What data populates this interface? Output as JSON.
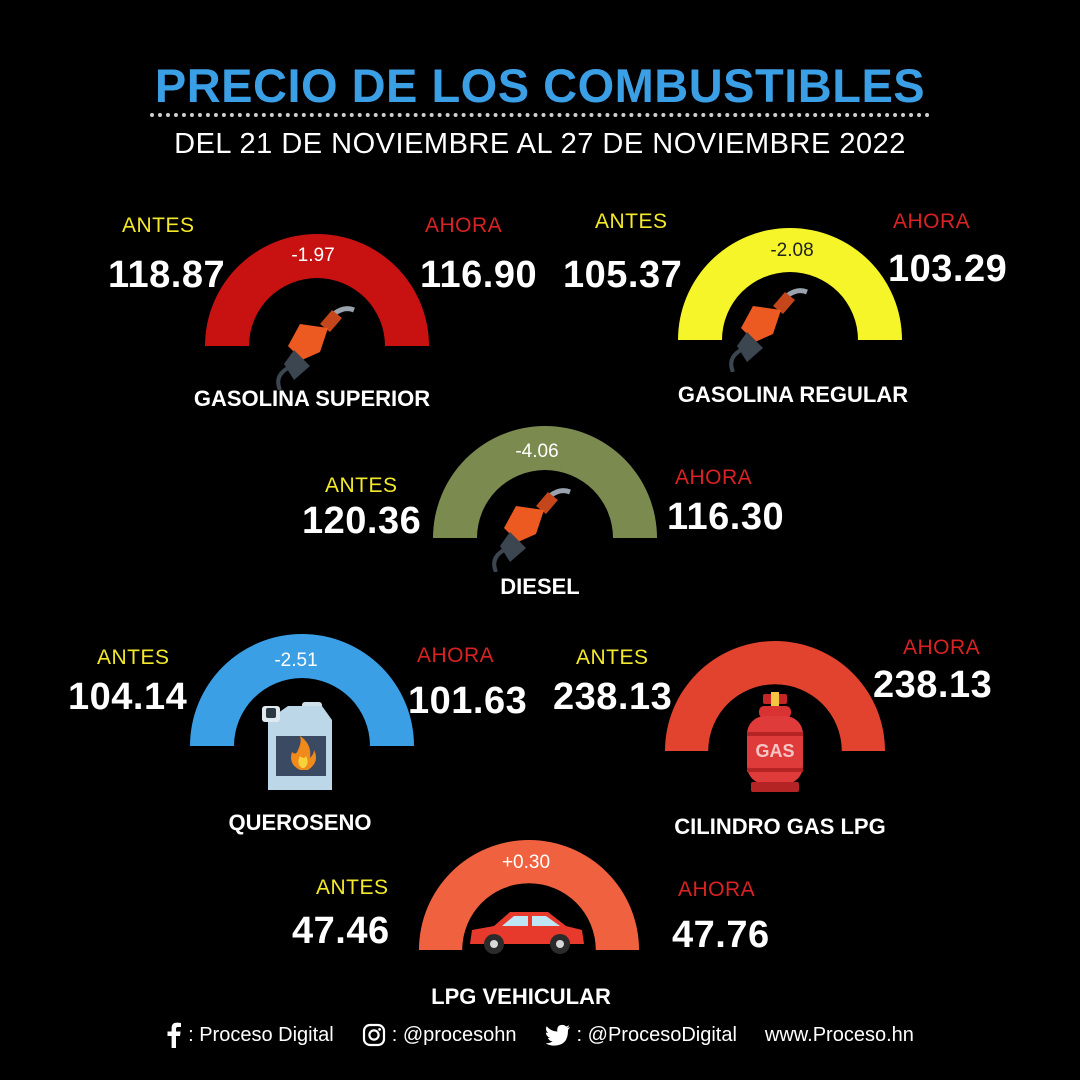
{
  "header": {
    "title": "PRECIO DE LOS COMBUSTIBLES",
    "subtitle": "DEL 21 DE NOVIEMBRE AL 27 DE NOVIEMBRE 2022",
    "title_color": "#3b9fe6"
  },
  "labels": {
    "before": "ANTES",
    "after": "AHORA",
    "before_color": "#f4ea2a",
    "after_color": "#d92222"
  },
  "fuels": [
    {
      "name": "GASOLINA SUPERIOR",
      "before": "118.87",
      "after": "116.90",
      "change": "-1.97",
      "color": "#c81212",
      "icon": "fuel-nozzle-icon"
    },
    {
      "name": "GASOLINA REGULAR",
      "before": "105.37",
      "after": "103.29",
      "change": "-2.08",
      "color": "#f5f52a",
      "icon": "fuel-nozzle-icon"
    },
    {
      "name": "DIESEL",
      "before": "120.36",
      "after": "116.30",
      "change": "-4.06",
      "color": "#7b8a4f",
      "icon": "fuel-nozzle-icon"
    },
    {
      "name": "QUEROSENO",
      "before": "104.14",
      "after": "101.63",
      "change": "-2.51",
      "color": "#3b9fe6",
      "icon": "kerosene-jerrycan-icon"
    },
    {
      "name": "CILINDRO GAS LPG",
      "before": "238.13",
      "after": "238.13",
      "change": "",
      "color": "#e2432f",
      "icon": "gas-cylinder-icon",
      "icon_text": "GAS"
    },
    {
      "name": "LPG VEHICULAR",
      "before": "47.46",
      "after": "47.76",
      "change": "+0.30",
      "color": "#f0623f",
      "icon": "car-icon"
    }
  ],
  "footer": {
    "facebook": ": Proceso Digital",
    "instagram": ": @procesohn",
    "twitter": ": @ProcesoDigital",
    "website": "www.Proceso.hn"
  }
}
